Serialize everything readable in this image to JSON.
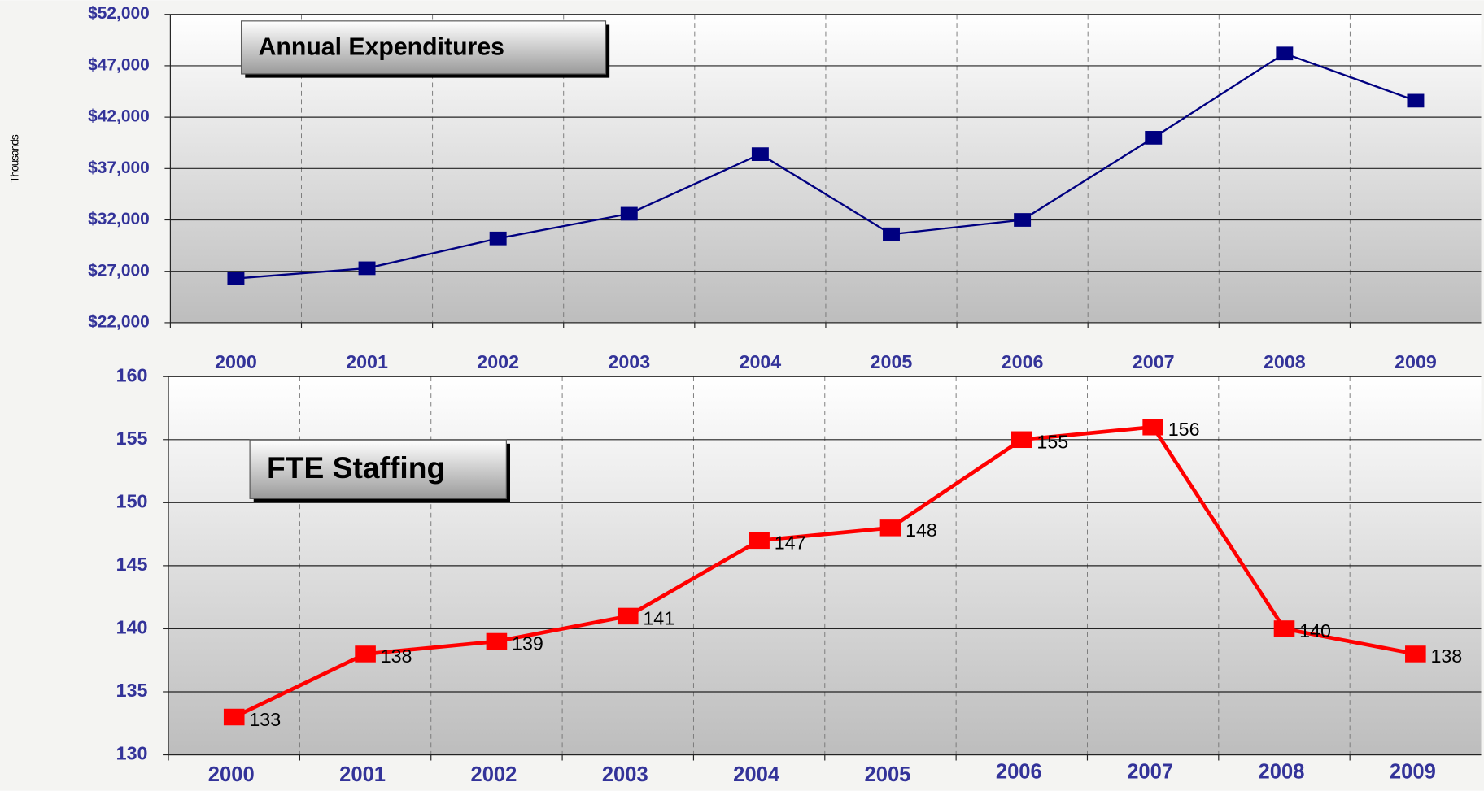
{
  "chart_data": [
    {
      "type": "line",
      "title": "Annual Expenditures",
      "y_label": "Thousands",
      "categories": [
        "2000",
        "2001",
        "2002",
        "2003",
        "2004",
        "2005",
        "2006",
        "2007",
        "2008",
        "2009"
      ],
      "values": [
        26300,
        27300,
        30200,
        32600,
        38400,
        30600,
        32000,
        40000,
        48200,
        43600
      ],
      "color": "#000080",
      "ylim": [
        22000,
        52000
      ],
      "yticks": [
        {
          "value": 22000,
          "label": "$22,000"
        },
        {
          "value": 27000,
          "label": "$27,000"
        },
        {
          "value": 32000,
          "label": "$32,000"
        },
        {
          "value": 37000,
          "label": "$37,000"
        },
        {
          "value": 42000,
          "label": "$42,000"
        },
        {
          "value": 47000,
          "label": "$47,000"
        },
        {
          "value": 52000,
          "label": "$52,000"
        }
      ],
      "grid": true,
      "data_labels": false
    },
    {
      "type": "line",
      "title": "FTE Staffing",
      "categories": [
        "2000",
        "2001",
        "2002",
        "2003",
        "2004",
        "2005",
        "2006",
        "2007",
        "2008",
        "2009"
      ],
      "values": [
        133,
        138,
        139,
        141,
        147,
        148,
        155,
        156,
        140,
        138
      ],
      "color": "#ff0000",
      "ylim": [
        130,
        160
      ],
      "yticks": [
        130,
        135,
        140,
        145,
        150,
        155,
        160
      ],
      "grid": true,
      "data_labels": true
    }
  ]
}
